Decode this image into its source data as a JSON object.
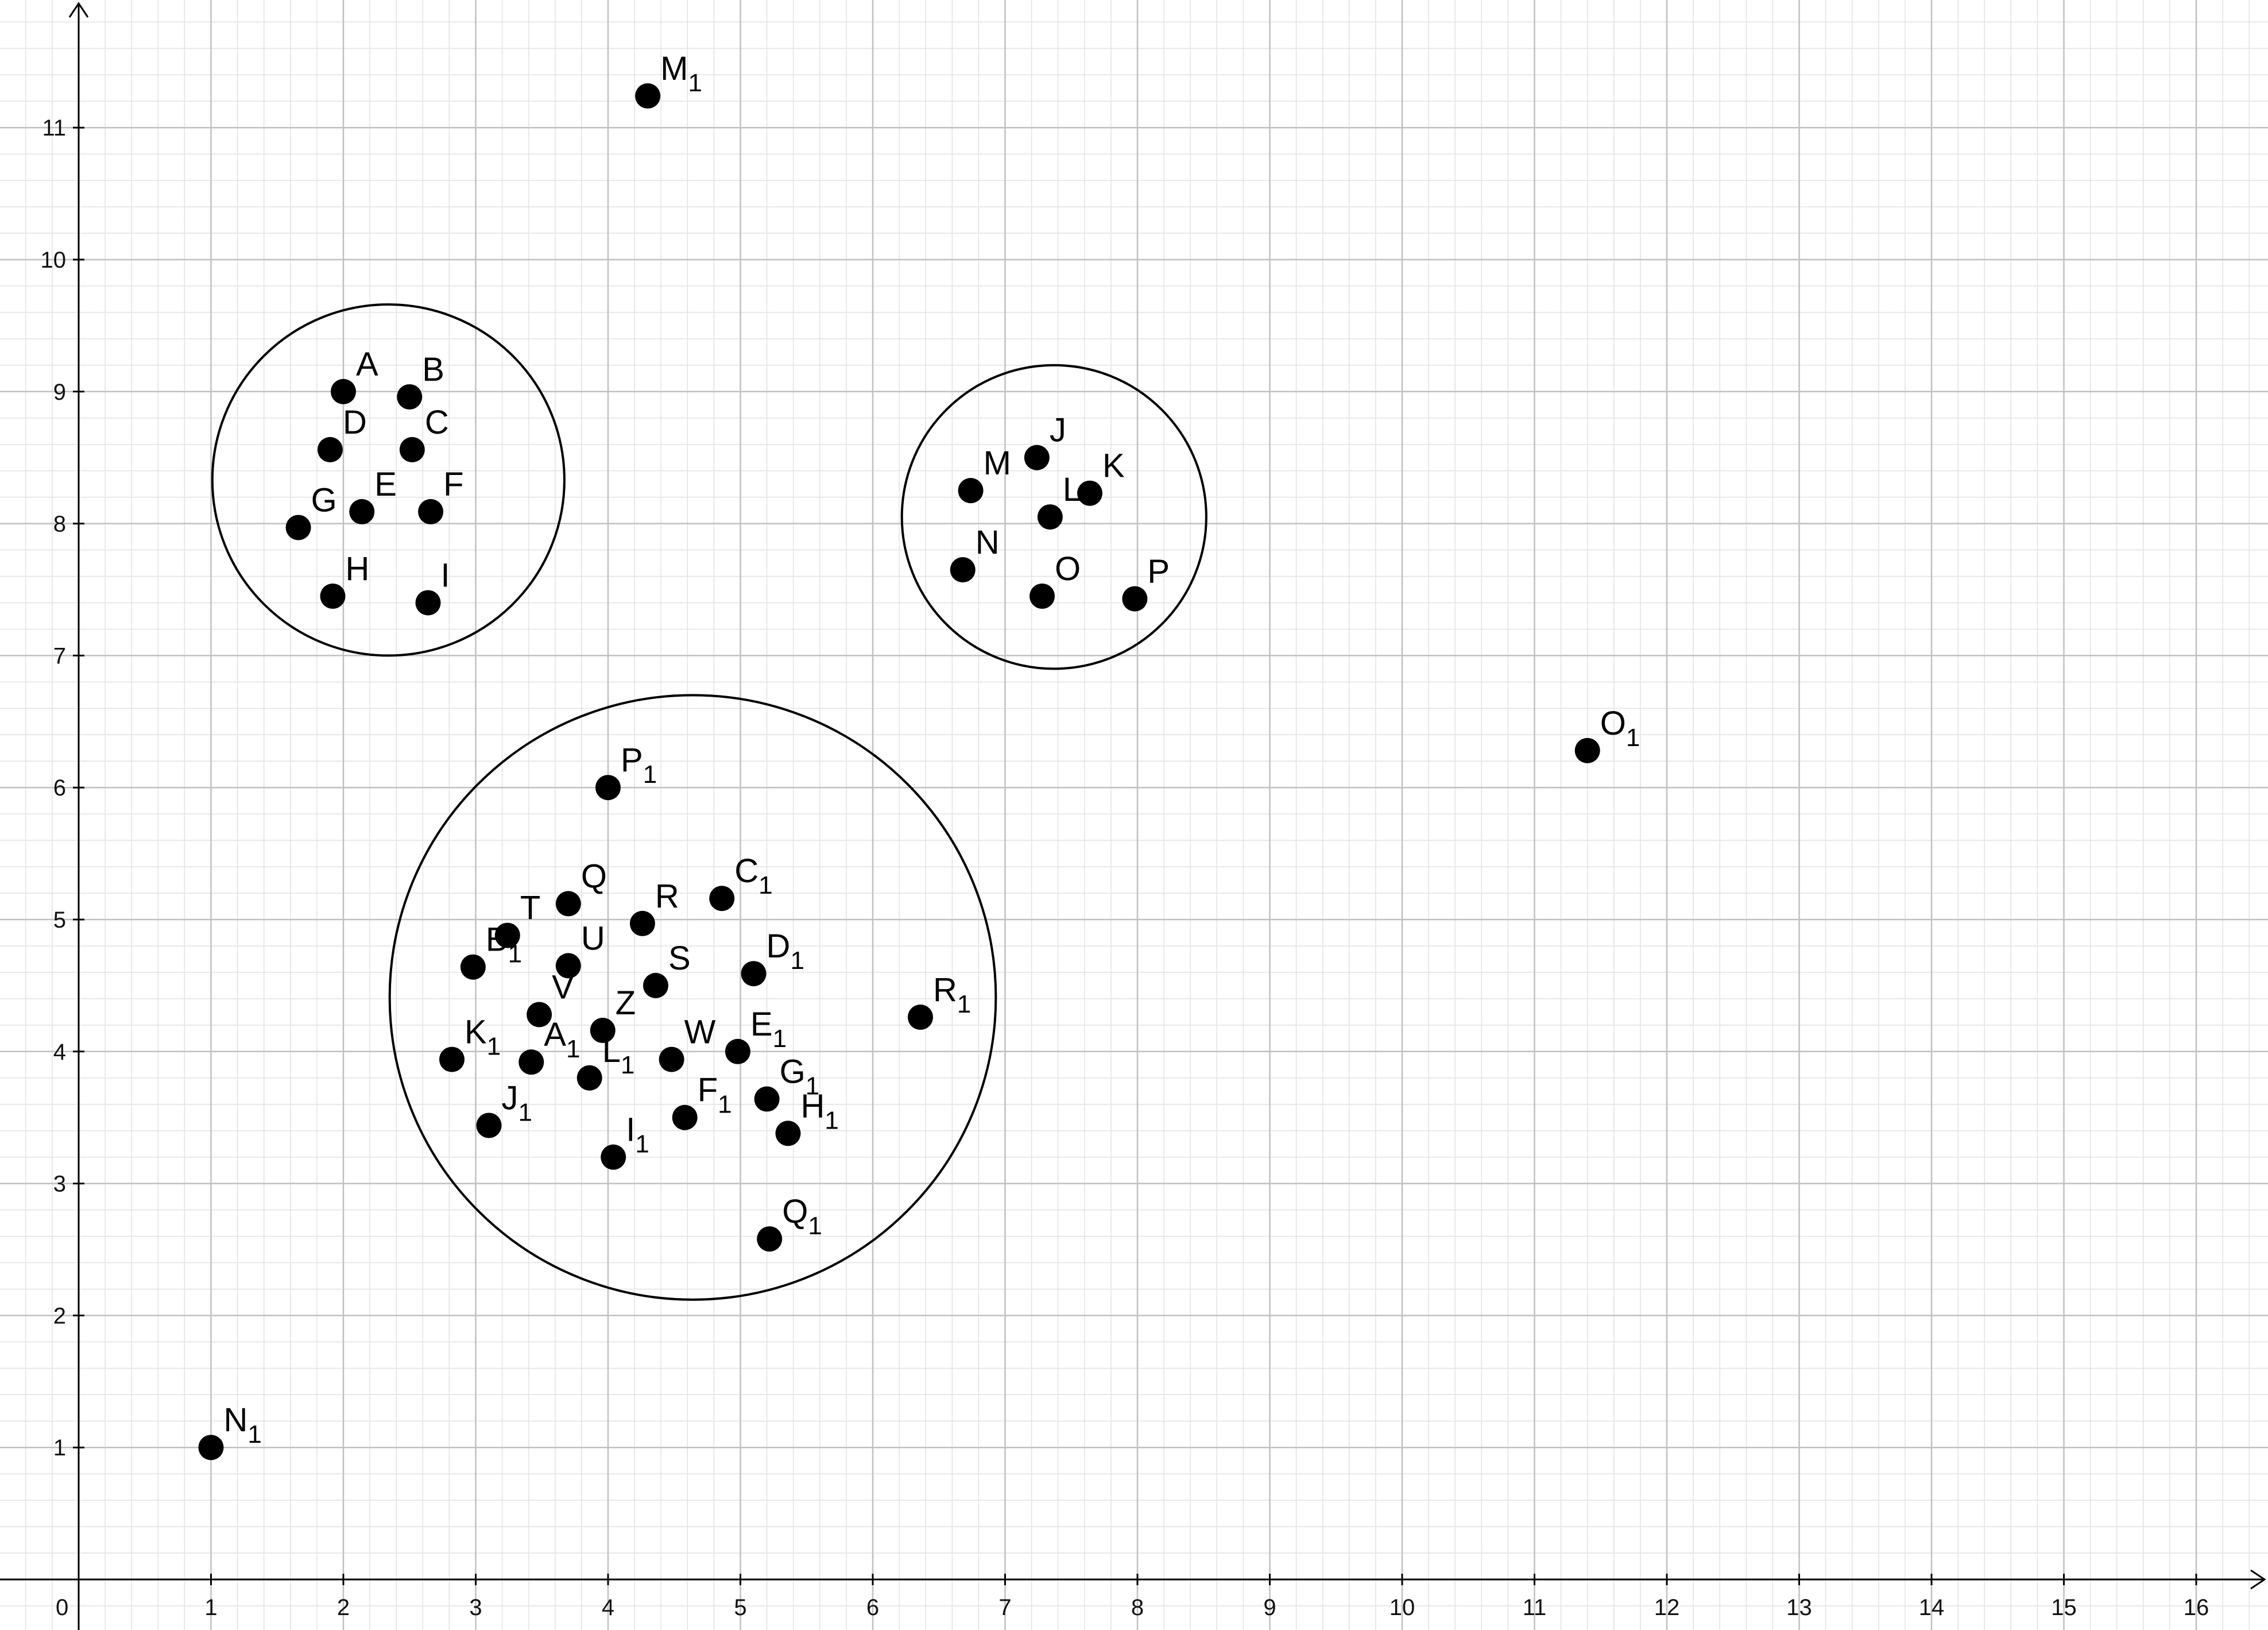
{
  "chart_data": {
    "type": "scatter",
    "title": "",
    "xlabel": "",
    "ylabel": "",
    "xlim": [
      -0.6,
      16.5
    ],
    "ylim": [
      -0.2,
      11.8
    ],
    "x_ticks": [
      "1",
      "2",
      "3",
      "4",
      "5",
      "6",
      "7",
      "8",
      "9",
      "10",
      "11",
      "12",
      "13",
      "14",
      "15",
      "16"
    ],
    "y_ticks": [
      "1",
      "2",
      "3",
      "4",
      "5",
      "6",
      "7",
      "8",
      "9",
      "10",
      "11"
    ],
    "origin_label": "0",
    "grid": true,
    "points": [
      {
        "name": "A",
        "sub": "",
        "x": 2.0,
        "y": 9.0
      },
      {
        "name": "B",
        "sub": "",
        "x": 2.5,
        "y": 8.96
      },
      {
        "name": "C",
        "sub": "",
        "x": 2.52,
        "y": 8.56
      },
      {
        "name": "D",
        "sub": "",
        "x": 1.9,
        "y": 8.56
      },
      {
        "name": "E",
        "sub": "",
        "x": 2.14,
        "y": 8.09
      },
      {
        "name": "F",
        "sub": "",
        "x": 2.66,
        "y": 8.09
      },
      {
        "name": "G",
        "sub": "",
        "x": 1.66,
        "y": 7.97
      },
      {
        "name": "H",
        "sub": "",
        "x": 1.92,
        "y": 7.45
      },
      {
        "name": "I",
        "sub": "",
        "x": 2.64,
        "y": 7.4
      },
      {
        "name": "J",
        "sub": "",
        "x": 7.24,
        "y": 8.5
      },
      {
        "name": "K",
        "sub": "",
        "x": 7.64,
        "y": 8.23
      },
      {
        "name": "L",
        "sub": "",
        "x": 7.34,
        "y": 8.05
      },
      {
        "name": "M",
        "sub": "",
        "x": 6.74,
        "y": 8.25
      },
      {
        "name": "N",
        "sub": "",
        "x": 6.68,
        "y": 7.65
      },
      {
        "name": "O",
        "sub": "",
        "x": 7.28,
        "y": 7.45
      },
      {
        "name": "P",
        "sub": "",
        "x": 7.98,
        "y": 7.43
      },
      {
        "name": "Q",
        "sub": "",
        "x": 3.7,
        "y": 5.12
      },
      {
        "name": "R",
        "sub": "",
        "x": 4.26,
        "y": 4.97
      },
      {
        "name": "S",
        "sub": "",
        "x": 4.36,
        "y": 4.5
      },
      {
        "name": "T",
        "sub": "",
        "x": 3.24,
        "y": 4.88
      },
      {
        "name": "U",
        "sub": "",
        "x": 3.7,
        "y": 4.65
      },
      {
        "name": "V",
        "sub": "",
        "x": 3.48,
        "y": 4.28
      },
      {
        "name": "W",
        "sub": "",
        "x": 4.48,
        "y": 3.94
      },
      {
        "name": "Z",
        "sub": "",
        "x": 3.96,
        "y": 4.16
      },
      {
        "name": "A",
        "sub": "1",
        "x": 3.42,
        "y": 3.92
      },
      {
        "name": "B",
        "sub": "1",
        "x": 2.98,
        "y": 4.64
      },
      {
        "name": "C",
        "sub": "1",
        "x": 4.86,
        "y": 5.16
      },
      {
        "name": "D",
        "sub": "1",
        "x": 5.1,
        "y": 4.59
      },
      {
        "name": "E",
        "sub": "1",
        "x": 4.98,
        "y": 4.0
      },
      {
        "name": "F",
        "sub": "1",
        "x": 4.58,
        "y": 3.5
      },
      {
        "name": "G",
        "sub": "1",
        "x": 5.2,
        "y": 3.64
      },
      {
        "name": "H",
        "sub": "1",
        "x": 5.36,
        "y": 3.38
      },
      {
        "name": "I",
        "sub": "1",
        "x": 4.04,
        "y": 3.2
      },
      {
        "name": "J",
        "sub": "1",
        "x": 3.1,
        "y": 3.44
      },
      {
        "name": "K",
        "sub": "1",
        "x": 2.82,
        "y": 3.94
      },
      {
        "name": "L",
        "sub": "1",
        "x": 3.86,
        "y": 3.8
      },
      {
        "name": "M",
        "sub": "1",
        "x": 4.3,
        "y": 11.24
      },
      {
        "name": "N",
        "sub": "1",
        "x": 1.0,
        "y": 1.0
      },
      {
        "name": "O",
        "sub": "1",
        "x": 11.4,
        "y": 6.28
      },
      {
        "name": "P",
        "sub": "1",
        "x": 4.0,
        "y": 6.0
      },
      {
        "name": "Q",
        "sub": "1",
        "x": 5.22,
        "y": 2.58
      },
      {
        "name": "R",
        "sub": "1",
        "x": 6.36,
        "y": 4.26
      }
    ],
    "circles": [
      {
        "cx": 2.34,
        "cy": 8.33,
        "r": 1.33
      },
      {
        "cx": 7.37,
        "cy": 8.05,
        "r": 1.15
      },
      {
        "cx": 4.64,
        "cy": 4.41,
        "r": 2.29
      }
    ]
  }
}
